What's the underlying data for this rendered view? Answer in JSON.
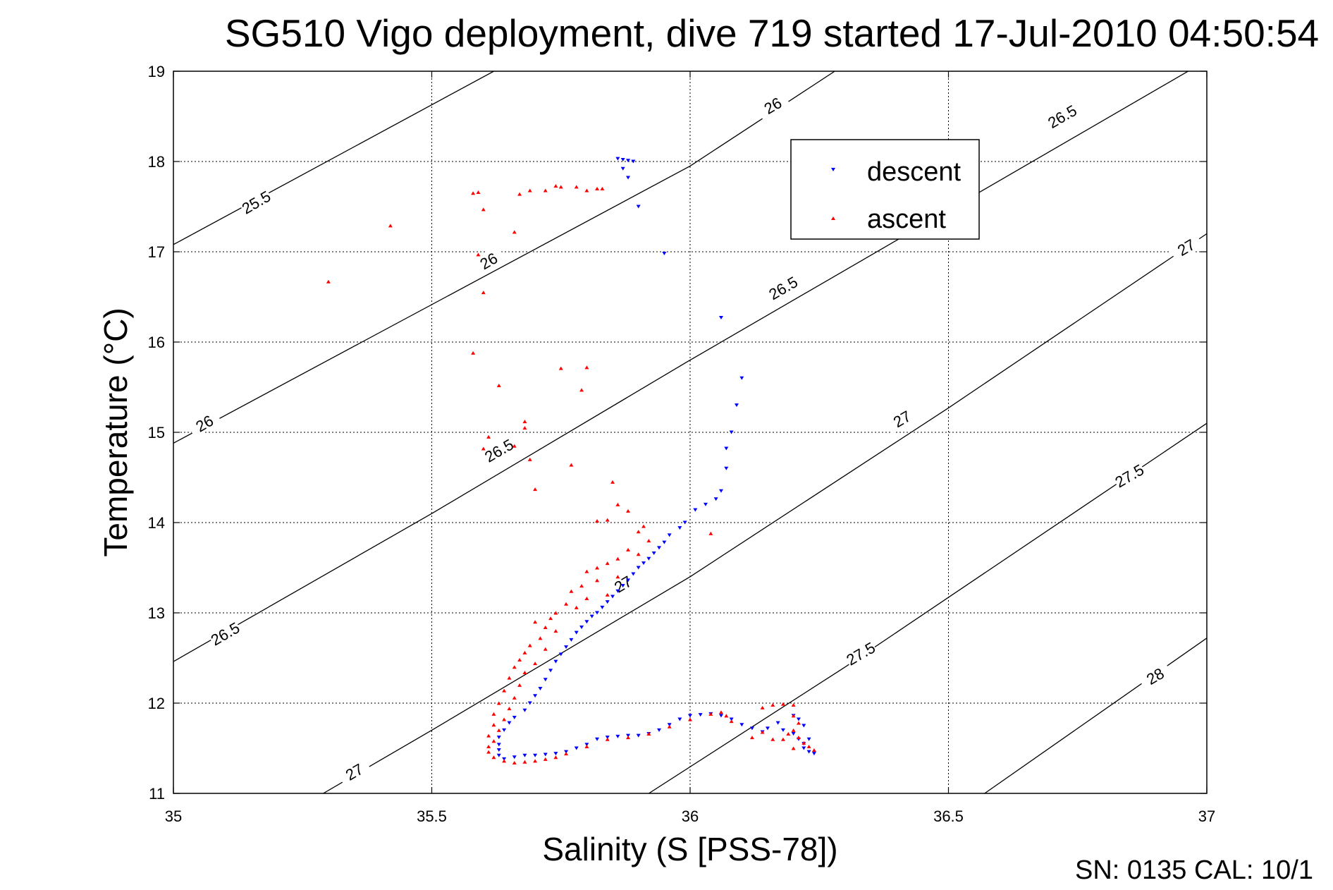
{
  "chart_data": {
    "type": "scatter",
    "title": "SG510 Vigo deployment, dive 719 started 17-Jul-2010 04:50:54",
    "xlabel": "Salinity (S [PSS-78])",
    "ylabel": "Temperature (°C)",
    "xlim": [
      35,
      37
    ],
    "ylim": [
      11,
      19
    ],
    "xticks": [
      "35",
      "35.5",
      "36",
      "36.5",
      "37"
    ],
    "yticks": [
      "11",
      "12",
      "13",
      "14",
      "15",
      "16",
      "17",
      "18",
      "19"
    ],
    "grid": true,
    "legend_position": "top-right",
    "footer": "SN: 0135  CAL: 10/1",
    "contours": [
      {
        "label": "25.5",
        "points": [
          [
            35.0,
            17.08
          ],
          [
            35.62,
            19.0
          ]
        ],
        "label_at": [
          35.16,
          17.55
        ]
      },
      {
        "label": "26",
        "points": [
          [
            35.0,
            14.88
          ],
          [
            36.0,
            17.95
          ],
          [
            36.28,
            19.0
          ]
        ],
        "label_at": [
          35.06,
          15.1
        ]
      },
      {
        "label": "26",
        "points": [],
        "label_at": [
          35.61,
          16.9
        ]
      },
      {
        "label": "26",
        "points": [],
        "label_at": [
          36.16,
          18.62
        ]
      },
      {
        "label": "26.5",
        "points": [
          [
            35.0,
            12.46
          ],
          [
            35.5,
            14.1
          ],
          [
            36.0,
            15.8
          ],
          [
            36.5,
            17.46
          ],
          [
            37.0,
            19.12
          ]
        ],
        "label_at": [
          35.1,
          12.77
        ]
      },
      {
        "label": "26.5",
        "points": [],
        "label_at": [
          35.63,
          14.8
        ]
      },
      {
        "label": "26.5",
        "points": [],
        "label_at": [
          36.18,
          16.6
        ]
      },
      {
        "label": "26.5",
        "points": [],
        "label_at": [
          36.72,
          18.5
        ]
      },
      {
        "label": "27",
        "points": [
          [
            35.29,
            11.0
          ],
          [
            35.5,
            11.7
          ],
          [
            36.0,
            13.4
          ],
          [
            36.5,
            15.27
          ],
          [
            37.0,
            17.2
          ]
        ],
        "label_at": [
          35.35,
          11.24
        ]
      },
      {
        "label": "27",
        "points": [],
        "label_at": [
          35.87,
          13.32
        ]
      },
      {
        "label": "27",
        "points": [],
        "label_at": [
          36.41,
          15.15
        ]
      },
      {
        "label": "27",
        "points": [],
        "label_at": [
          36.96,
          17.05
        ]
      },
      {
        "label": "27.5",
        "points": [
          [
            35.92,
            11.0
          ],
          [
            36.3,
            12.4
          ],
          [
            37.0,
            15.1
          ]
        ],
        "label_at": [
          36.33,
          12.55
        ]
      },
      {
        "label": "27.5",
        "points": [],
        "label_at": [
          36.85,
          14.52
        ]
      },
      {
        "label": "28",
        "points": [
          [
            36.57,
            11.0
          ],
          [
            37.0,
            12.72
          ]
        ],
        "label_at": [
          36.9,
          12.3
        ]
      }
    ],
    "series": [
      {
        "name": "descent",
        "color": "#0000ff",
        "marker": "triangle-down",
        "points": [
          [
            35.86,
            18.03
          ],
          [
            35.87,
            18.02
          ],
          [
            35.88,
            18.01
          ],
          [
            35.89,
            18.0
          ],
          [
            35.87,
            17.92
          ],
          [
            35.88,
            17.82
          ],
          [
            35.9,
            17.5
          ],
          [
            35.95,
            16.98
          ],
          [
            36.06,
            16.27
          ],
          [
            36.1,
            15.6
          ],
          [
            36.09,
            15.3
          ],
          [
            36.08,
            15.0
          ],
          [
            36.07,
            14.82
          ],
          [
            36.07,
            14.6
          ],
          [
            36.06,
            14.35
          ],
          [
            36.05,
            14.26
          ],
          [
            36.03,
            14.2
          ],
          [
            36.01,
            14.14
          ],
          [
            35.99,
            14.0
          ],
          [
            35.98,
            13.94
          ],
          [
            35.96,
            13.86
          ],
          [
            35.95,
            13.78
          ],
          [
            35.94,
            13.72
          ],
          [
            35.93,
            13.66
          ],
          [
            35.92,
            13.6
          ],
          [
            35.91,
            13.55
          ],
          [
            35.9,
            13.5
          ],
          [
            35.89,
            13.43
          ],
          [
            35.88,
            13.36
          ],
          [
            35.87,
            13.3
          ],
          [
            35.86,
            13.24
          ],
          [
            35.85,
            13.18
          ],
          [
            35.84,
            13.12
          ],
          [
            35.83,
            13.06
          ],
          [
            35.82,
            13.0
          ],
          [
            35.81,
            12.96
          ],
          [
            35.8,
            12.9
          ],
          [
            35.79,
            12.84
          ],
          [
            35.78,
            12.78
          ],
          [
            35.77,
            12.7
          ],
          [
            35.76,
            12.62
          ],
          [
            35.75,
            12.54
          ],
          [
            35.74,
            12.46
          ],
          [
            35.73,
            12.36
          ],
          [
            35.72,
            12.26
          ],
          [
            35.71,
            12.16
          ],
          [
            35.7,
            12.08
          ],
          [
            35.69,
            12.0
          ],
          [
            35.68,
            11.92
          ],
          [
            35.66,
            11.84
          ],
          [
            35.65,
            11.78
          ],
          [
            35.64,
            11.7
          ],
          [
            35.63,
            11.62
          ],
          [
            35.63,
            11.54
          ],
          [
            35.63,
            11.48
          ],
          [
            35.63,
            11.42
          ],
          [
            35.64,
            11.38
          ],
          [
            35.66,
            11.4
          ],
          [
            35.68,
            11.42
          ],
          [
            35.7,
            11.42
          ],
          [
            35.72,
            11.43
          ],
          [
            35.74,
            11.44
          ],
          [
            35.76,
            11.46
          ],
          [
            35.78,
            11.5
          ],
          [
            35.8,
            11.54
          ],
          [
            35.82,
            11.6
          ],
          [
            35.84,
            11.62
          ],
          [
            35.86,
            11.63
          ],
          [
            35.88,
            11.64
          ],
          [
            35.9,
            11.64
          ],
          [
            35.92,
            11.66
          ],
          [
            35.94,
            11.7
          ],
          [
            35.96,
            11.76
          ],
          [
            35.98,
            11.82
          ],
          [
            36.0,
            11.86
          ],
          [
            36.02,
            11.87
          ],
          [
            36.04,
            11.88
          ],
          [
            36.06,
            11.86
          ],
          [
            36.08,
            11.82
          ],
          [
            36.1,
            11.76
          ],
          [
            36.12,
            11.72
          ],
          [
            36.14,
            11.68
          ],
          [
            36.15,
            11.72
          ],
          [
            36.17,
            11.78
          ],
          [
            36.18,
            11.7
          ],
          [
            36.2,
            11.66
          ],
          [
            36.21,
            11.6
          ],
          [
            36.22,
            11.55
          ],
          [
            36.23,
            11.6
          ],
          [
            36.22,
            11.75
          ],
          [
            36.21,
            11.82
          ],
          [
            36.2,
            11.86
          ],
          [
            36.22,
            11.5
          ],
          [
            36.23,
            11.46
          ],
          [
            36.24,
            11.44
          ]
        ]
      },
      {
        "name": "ascent",
        "color": "#ff0000",
        "marker": "triangle-up",
        "points": [
          [
            35.3,
            16.67
          ],
          [
            35.42,
            17.29
          ],
          [
            35.58,
            17.65
          ],
          [
            35.59,
            17.66
          ],
          [
            35.6,
            17.47
          ],
          [
            35.67,
            17.64
          ],
          [
            35.69,
            17.68
          ],
          [
            35.72,
            17.68
          ],
          [
            35.74,
            17.73
          ],
          [
            35.75,
            17.72
          ],
          [
            35.78,
            17.72
          ],
          [
            35.8,
            17.68
          ],
          [
            35.82,
            17.7
          ],
          [
            35.83,
            17.7
          ],
          [
            35.66,
            17.22
          ],
          [
            35.59,
            16.97
          ],
          [
            35.6,
            16.55
          ],
          [
            35.58,
            15.88
          ],
          [
            35.63,
            15.52
          ],
          [
            35.68,
            15.12
          ],
          [
            35.68,
            15.05
          ],
          [
            35.61,
            14.95
          ],
          [
            35.6,
            14.82
          ],
          [
            35.66,
            14.85
          ],
          [
            35.69,
            14.7
          ],
          [
            35.7,
            14.37
          ],
          [
            35.75,
            15.71
          ],
          [
            35.8,
            15.72
          ],
          [
            35.79,
            15.47
          ],
          [
            35.77,
            14.64
          ],
          [
            35.85,
            14.45
          ],
          [
            35.86,
            14.2
          ],
          [
            35.88,
            14.13
          ],
          [
            35.84,
            14.03
          ],
          [
            35.82,
            14.02
          ],
          [
            36.04,
            13.88
          ],
          [
            35.91,
            13.96
          ],
          [
            35.9,
            13.9
          ],
          [
            35.92,
            13.8
          ],
          [
            35.88,
            13.7
          ],
          [
            35.9,
            13.65
          ],
          [
            35.86,
            13.6
          ],
          [
            35.84,
            13.55
          ],
          [
            35.82,
            13.5
          ],
          [
            35.8,
            13.46
          ],
          [
            35.86,
            13.4
          ],
          [
            35.82,
            13.36
          ],
          [
            35.79,
            13.3
          ],
          [
            35.77,
            13.24
          ],
          [
            35.84,
            13.2
          ],
          [
            35.8,
            13.16
          ],
          [
            35.76,
            13.1
          ],
          [
            35.78,
            13.06
          ],
          [
            35.74,
            13.0
          ],
          [
            35.73,
            12.94
          ],
          [
            35.7,
            12.9
          ],
          [
            35.72,
            12.84
          ],
          [
            35.74,
            12.8
          ],
          [
            35.71,
            12.72
          ],
          [
            35.69,
            12.64
          ],
          [
            35.68,
            12.56
          ],
          [
            35.72,
            12.6
          ],
          [
            35.67,
            12.48
          ],
          [
            35.7,
            12.44
          ],
          [
            35.66,
            12.4
          ],
          [
            35.68,
            12.34
          ],
          [
            35.65,
            12.28
          ],
          [
            35.67,
            12.2
          ],
          [
            35.64,
            12.14
          ],
          [
            35.66,
            12.06
          ],
          [
            35.63,
            12.0
          ],
          [
            35.65,
            11.94
          ],
          [
            35.62,
            11.88
          ],
          [
            35.64,
            11.82
          ],
          [
            35.62,
            11.76
          ],
          [
            35.63,
            11.7
          ],
          [
            35.61,
            11.64
          ],
          [
            35.62,
            11.58
          ],
          [
            35.61,
            11.52
          ],
          [
            35.61,
            11.46
          ],
          [
            35.62,
            11.4
          ],
          [
            35.64,
            11.36
          ],
          [
            35.66,
            11.34
          ],
          [
            35.68,
            11.35
          ],
          [
            35.7,
            11.36
          ],
          [
            35.72,
            11.38
          ],
          [
            35.74,
            11.4
          ],
          [
            35.76,
            11.44
          ],
          [
            35.8,
            11.52
          ],
          [
            35.84,
            11.6
          ],
          [
            35.88,
            11.62
          ],
          [
            35.92,
            11.66
          ],
          [
            35.96,
            11.74
          ],
          [
            36.0,
            11.82
          ],
          [
            36.04,
            11.88
          ],
          [
            36.06,
            11.9
          ],
          [
            36.07,
            11.86
          ],
          [
            36.08,
            11.8
          ],
          [
            36.14,
            11.95
          ],
          [
            36.16,
            11.98
          ],
          [
            36.18,
            11.99
          ],
          [
            36.2,
            11.98
          ],
          [
            36.2,
            11.86
          ],
          [
            36.21,
            11.78
          ],
          [
            36.2,
            11.7
          ],
          [
            36.21,
            11.62
          ],
          [
            36.22,
            11.56
          ],
          [
            36.23,
            11.52
          ],
          [
            36.24,
            11.48
          ],
          [
            36.2,
            11.5
          ],
          [
            36.16,
            11.6
          ],
          [
            36.14,
            11.68
          ],
          [
            36.12,
            11.62
          ],
          [
            36.18,
            11.6
          ],
          [
            36.19,
            11.66
          ]
        ]
      }
    ]
  }
}
